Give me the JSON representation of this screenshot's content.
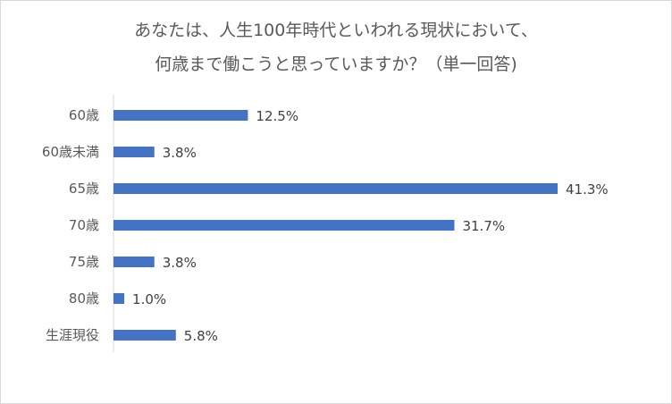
{
  "chart_data": {
    "type": "bar",
    "orientation": "horizontal",
    "title_lines": [
      "あなたは、人生100年時代といわれる現状において、",
      "何歳まで働こうと思っていますか？（単一回答)"
    ],
    "categories": [
      "60歳",
      "60歳未満",
      "65歳",
      "70歳",
      "75歳",
      "80歳",
      "生涯現役"
    ],
    "values": [
      12.5,
      3.8,
      41.3,
      31.7,
      3.8,
      1.0,
      5.8
    ],
    "value_labels": [
      "12.5%",
      "3.8%",
      "41.3%",
      "31.7%",
      "3.8%",
      "1.0%",
      "5.8%"
    ],
    "xlabel": "",
    "ylabel": "",
    "bar_color": "#4472c4",
    "grid": false,
    "legend": "none"
  }
}
